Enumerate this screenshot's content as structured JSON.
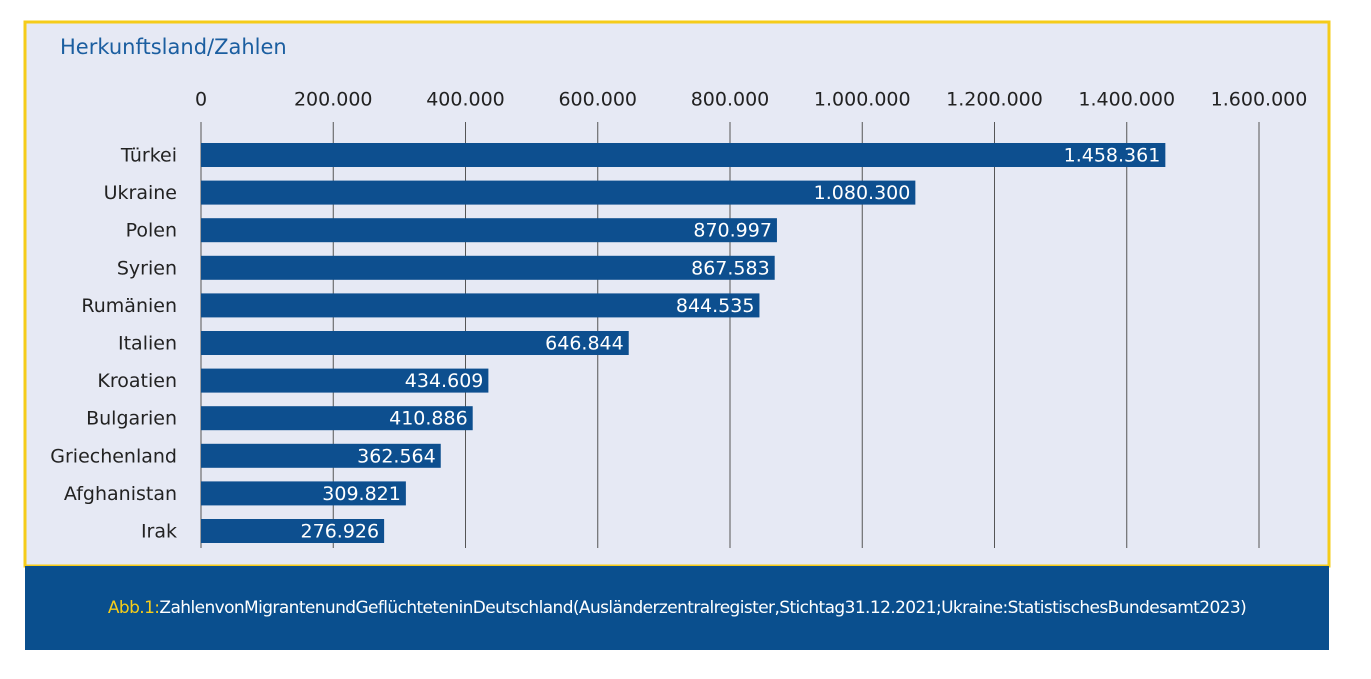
{
  "chart_data": {
    "type": "hbar",
    "title": "Herkunftsland/Zahlen",
    "categories": [
      "Türkei",
      "Ukraine",
      "Polen",
      "Syrien",
      "Rumänien",
      "Italien",
      "Kroatien",
      "Bulgarien",
      "Griechenland",
      "Afghanistan",
      "Irak"
    ],
    "values": [
      1458361,
      1080300,
      870997,
      867583,
      844535,
      646844,
      434609,
      410886,
      362564,
      309821,
      276926
    ],
    "value_labels": [
      "1.458.361",
      "1.080.300",
      "870.997",
      "867.583",
      "844.535",
      "646.844",
      "434.609",
      "410.886",
      "362.564",
      "309.821",
      "276.926"
    ],
    "color": "#0d4f8f",
    "xlim": [
      0,
      1600000
    ],
    "xticks": [
      0,
      {
        "value": 200000,
        "label": "200.000"
      },
      {
        "value": 400000,
        "label": "400.000"
      },
      {
        "value": 600000,
        "label": "600.000"
      },
      {
        "value": 800000,
        "label": "800.000"
      },
      {
        "value": 1000000,
        "label": "1.000.000"
      },
      {
        "value": 1200000,
        "label": "1.200.000"
      },
      {
        "value": 1400000,
        "label": "1.400.000"
      },
      {
        "value": 1600000,
        "label": "1.600.000"
      }
    ],
    "grid": true,
    "caption_label": "Abb.1:",
    "caption": "ZahlenvonMigrantenundGeflüchteteninDeutschland(Ausländerzentralregister,Stichtag31.12.2021;Ukraine:StatistischesBundesamt2023)"
  }
}
